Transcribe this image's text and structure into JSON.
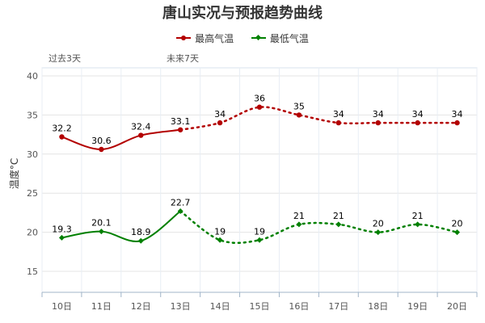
{
  "chart_data": {
    "type": "line",
    "title": "唐山实况与预报趋势曲线",
    "ylabel": "温度°C",
    "categories": [
      "10日",
      "11日",
      "12日",
      "13日",
      "14日",
      "15日",
      "16日",
      "17日",
      "18日",
      "19日",
      "20日"
    ],
    "ylim": [
      15,
      40
    ],
    "yticks": [
      15,
      20,
      25,
      30,
      35,
      40
    ],
    "grid": true,
    "legend_position": "top",
    "period_labels": {
      "past": "过去3天",
      "future": "未来7天"
    },
    "observed_through_index": 3,
    "series": [
      {
        "name": "最高气温",
        "color": "#b30000",
        "marker": "circle",
        "values": [
          32.2,
          30.6,
          32.4,
          33.1,
          34,
          36,
          35,
          34,
          34,
          34,
          34
        ],
        "labels": [
          "32.2",
          "30.6",
          "32.4",
          "33.1",
          "34",
          "36",
          "35",
          "34",
          "34",
          "34",
          "34"
        ]
      },
      {
        "name": "最低气温",
        "color": "#008000",
        "marker": "diamond",
        "values": [
          19.3,
          20.1,
          18.9,
          22.7,
          19,
          19,
          21,
          21,
          20,
          21,
          20
        ],
        "labels": [
          "19.3",
          "20.1",
          "18.9",
          "22.7",
          "19",
          "19",
          "21",
          "21",
          "20",
          "21",
          "20"
        ]
      }
    ]
  }
}
